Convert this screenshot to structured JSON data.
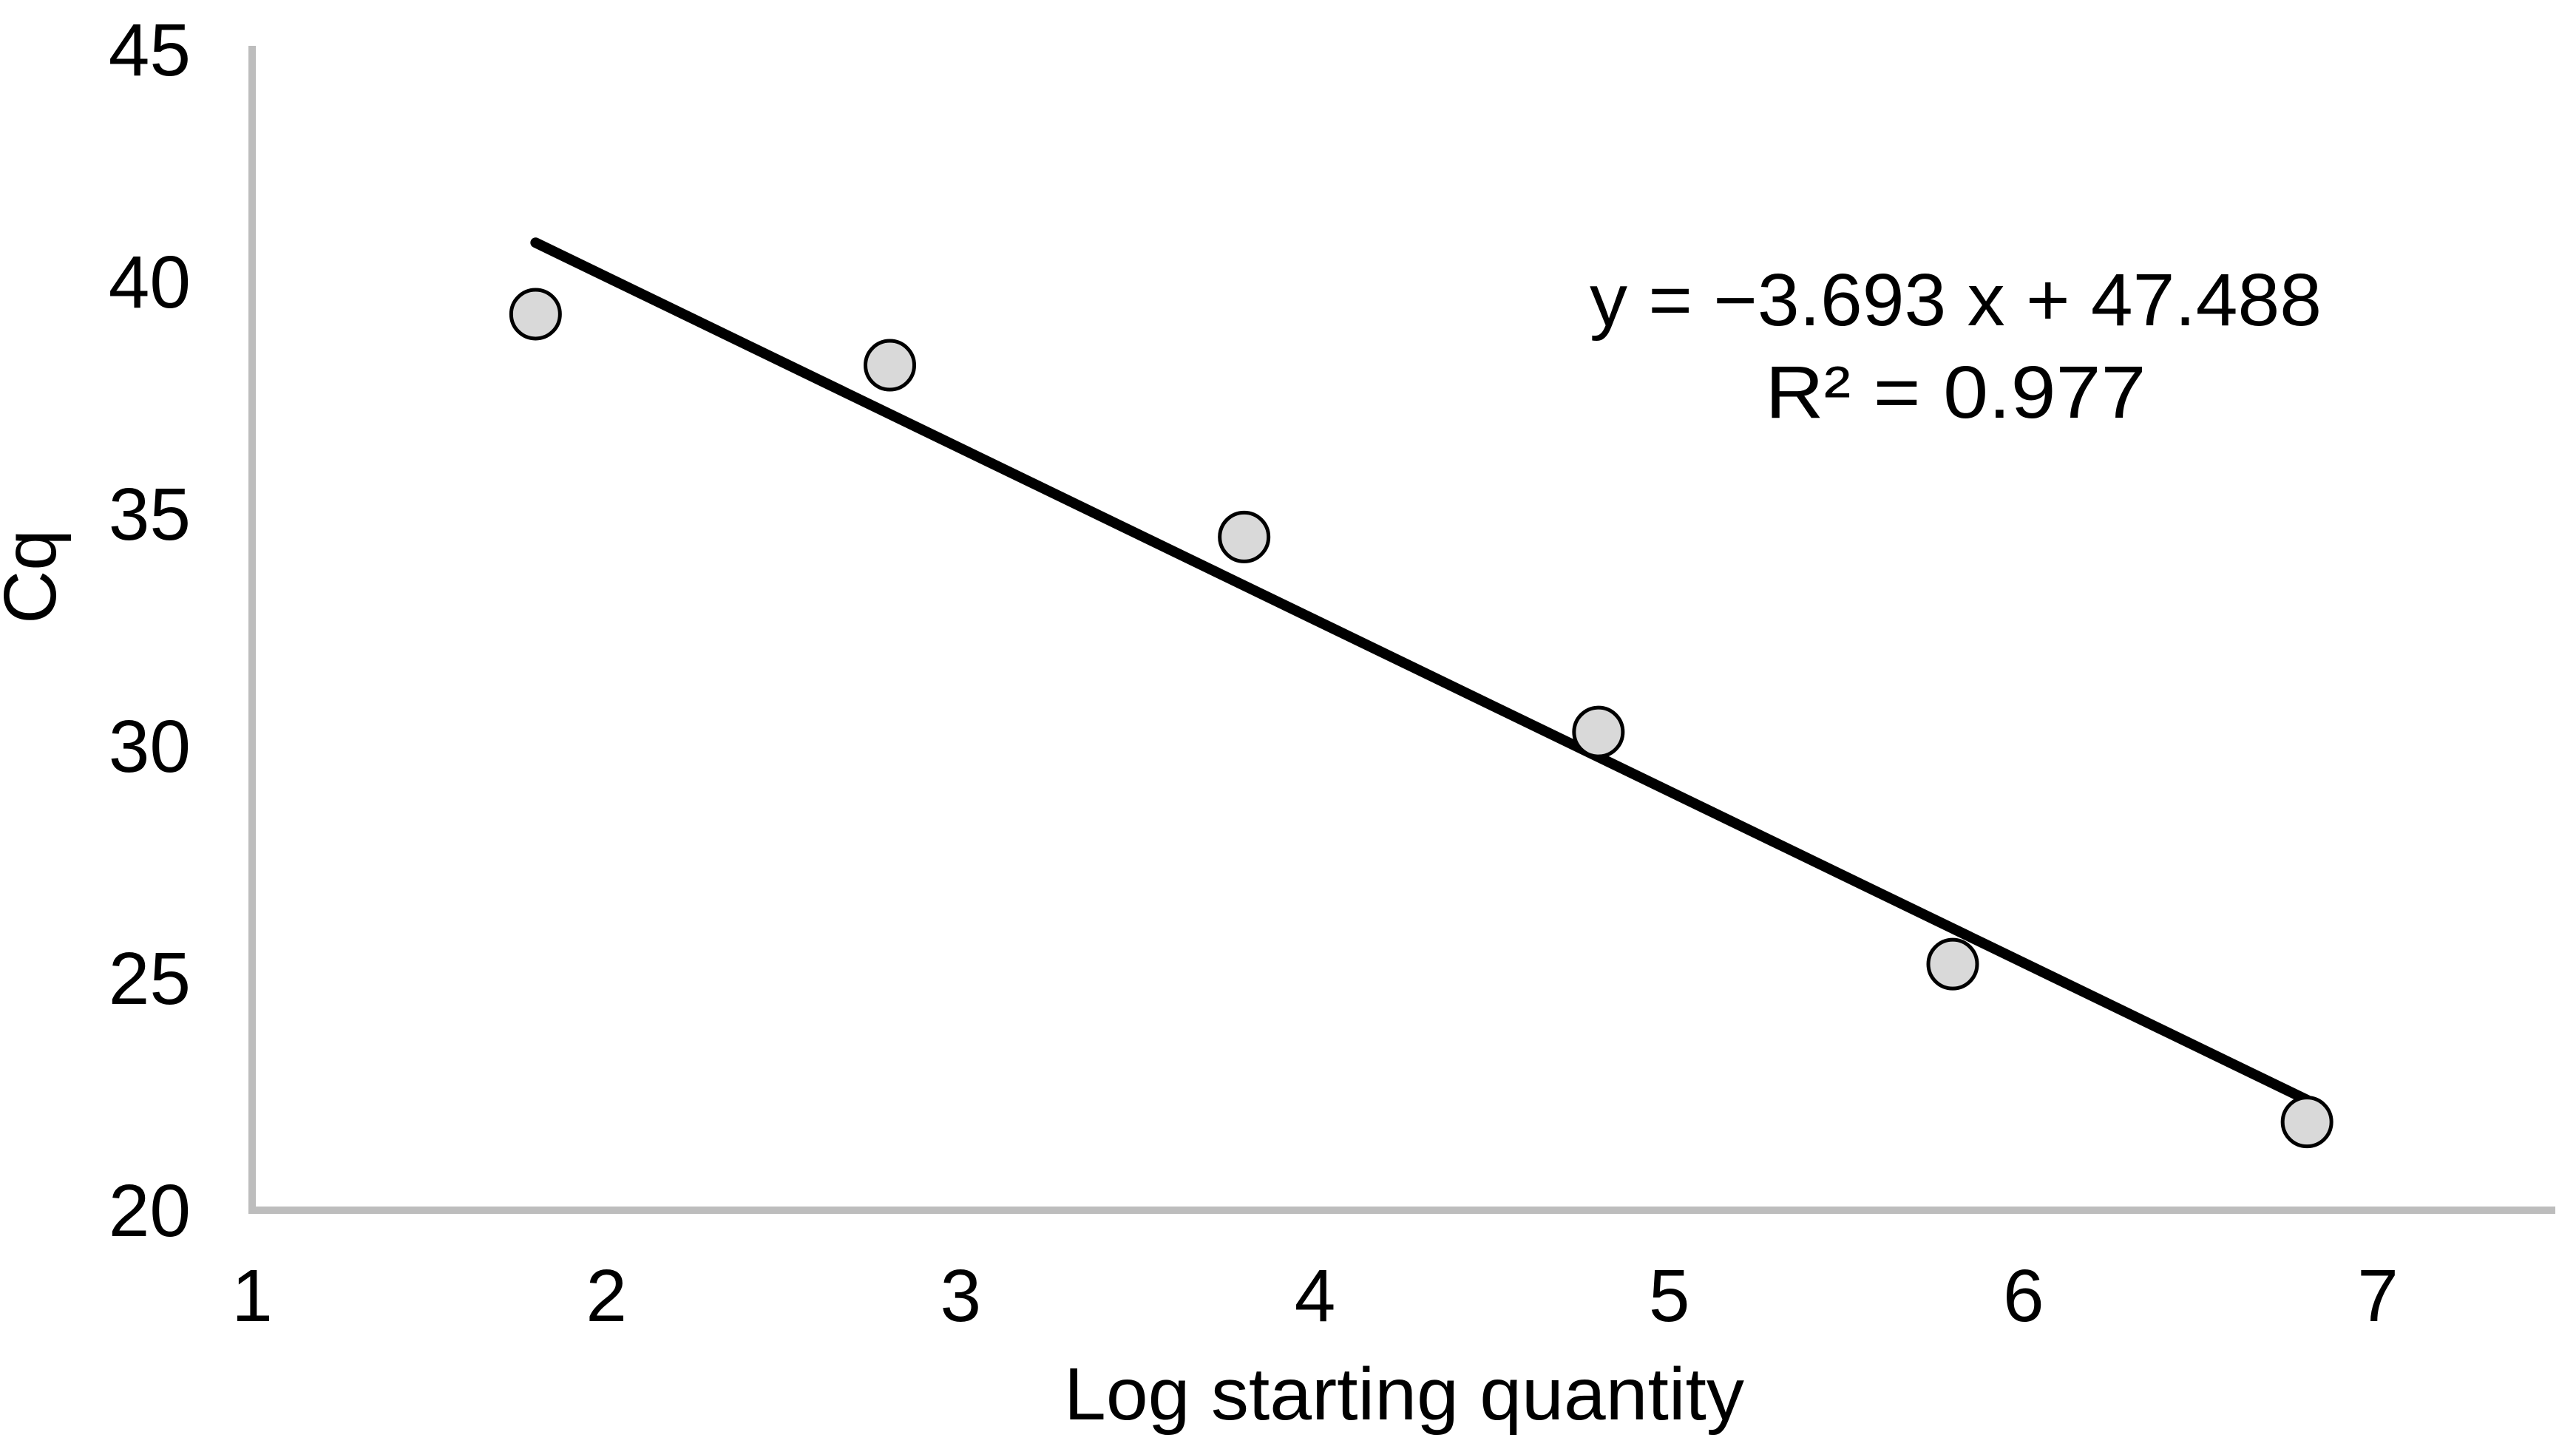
{
  "chart_data": {
    "type": "scatter",
    "title": "",
    "xlabel": "Log starting quantity",
    "ylabel": "Cq",
    "xlim": [
      1,
      7.5
    ],
    "ylim": [
      20,
      45
    ],
    "x_ticks": [
      1,
      2,
      3,
      4,
      5,
      6,
      7
    ],
    "y_ticks": [
      20,
      25,
      30,
      35,
      40,
      45
    ],
    "grid": false,
    "legend": false,
    "points": [
      {
        "x": 1.8,
        "y": 39.3
      },
      {
        "x": 2.8,
        "y": 38.2
      },
      {
        "x": 3.8,
        "y": 34.5
      },
      {
        "x": 4.8,
        "y": 30.3
      },
      {
        "x": 5.8,
        "y": 25.3
      },
      {
        "x": 6.8,
        "y": 21.9
      }
    ],
    "trendline": {
      "slope": -3.693,
      "intercept": 47.488,
      "x_start": 1.8,
      "x_end": 6.8
    },
    "annotation": {
      "equation": "y = −3.693 x + 47.488",
      "r_squared": "R² = 0.977"
    },
    "colors": {
      "marker_fill": "#d9d9d9",
      "marker_stroke": "#000000",
      "trendline": "#000000",
      "axis": "#bdbdbd",
      "text": "#000000"
    }
  }
}
